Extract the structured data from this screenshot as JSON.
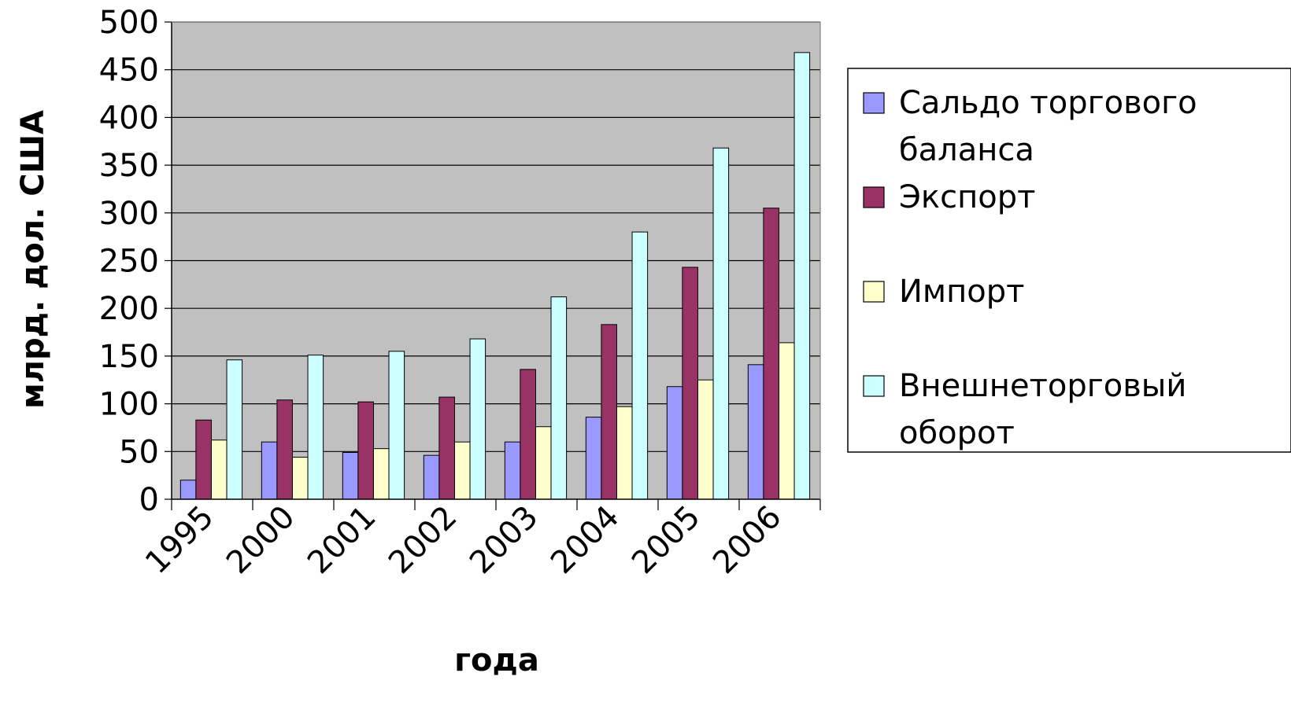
{
  "chart_data": {
    "type": "bar",
    "title": "",
    "xlabel": "года",
    "ylabel": "млрд. дол. США",
    "ylim": [
      0,
      500
    ],
    "yticks": [
      0,
      50,
      100,
      150,
      200,
      250,
      300,
      350,
      400,
      450,
      500
    ],
    "grid": true,
    "legend_position": "right",
    "plot_background": "#c0c0c0",
    "categories": [
      "1995",
      "2000",
      "2001",
      "2002",
      "2003",
      "2004",
      "2005",
      "2006"
    ],
    "series": [
      {
        "name": "Сальдо торгового баланса",
        "legend_lines": [
          "Сальдо торгового",
          "баланса"
        ],
        "color": "#9999ff",
        "values": [
          20,
          60,
          49,
          46,
          60,
          86,
          118,
          141
        ]
      },
      {
        "name": "Экспорт",
        "legend_lines": [
          "Экспорт"
        ],
        "color": "#993366",
        "values": [
          83,
          104,
          102,
          107,
          136,
          183,
          243,
          305
        ]
      },
      {
        "name": "Импорт",
        "legend_lines": [
          "Импорт"
        ],
        "color": "#ffffcc",
        "values": [
          62,
          44,
          53,
          60,
          76,
          97,
          125,
          164
        ]
      },
      {
        "name": "Внешнеторговый оборот",
        "legend_lines": [
          "Внешнеторговый",
          "оборот"
        ],
        "color": "#ccffff",
        "values": [
          146,
          151,
          155,
          168,
          212,
          280,
          368,
          468
        ]
      }
    ]
  }
}
